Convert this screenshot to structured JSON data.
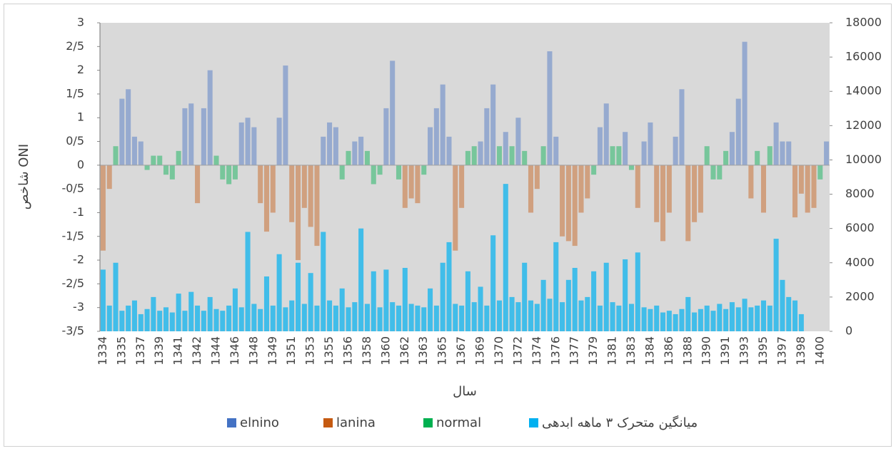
{
  "chart_data": {
    "type": "bar",
    "x_label": "سال",
    "y_label": "شاخص ONI",
    "categories": [
      "1334",
      null,
      null,
      "1335",
      null,
      null,
      "1337",
      null,
      null,
      "1339",
      null,
      null,
      "1341",
      null,
      null,
      "1342",
      null,
      null,
      "1344",
      null,
      null,
      "1346",
      null,
      null,
      "1348",
      null,
      null,
      "1349",
      null,
      null,
      "1351",
      null,
      null,
      "1353",
      null,
      null,
      "1355",
      null,
      null,
      "1356",
      null,
      null,
      "1358",
      null,
      null,
      "1360",
      null,
      null,
      "1362",
      null,
      null,
      "1363",
      null,
      null,
      "1365",
      null,
      null,
      "1367",
      null,
      null,
      "1369",
      null,
      null,
      "1370",
      null,
      null,
      "1372",
      null,
      null,
      "1374",
      null,
      null,
      "1376",
      null,
      null,
      "1377",
      null,
      null,
      "1379",
      null,
      null,
      "1381",
      null,
      null,
      "1383",
      null,
      null,
      "1384",
      null,
      null,
      "1386",
      null,
      null,
      "1388",
      null,
      null,
      "1390",
      null,
      null,
      "1391",
      null,
      null,
      "1393",
      null,
      null,
      "1395",
      null,
      null,
      "1397",
      null,
      null,
      "1398",
      null,
      null,
      "1400",
      null
    ],
    "series": [
      {
        "name": "elnino",
        "color": "#4472c4",
        "values": [
          null,
          null,
          null,
          1.4,
          1.6,
          0.6,
          0.5,
          null,
          null,
          null,
          null,
          null,
          null,
          1.2,
          1.3,
          null,
          1.2,
          2.0,
          null,
          null,
          null,
          null,
          0.9,
          1.0,
          0.8,
          null,
          null,
          null,
          1.0,
          2.1,
          null,
          null,
          null,
          null,
          null,
          0.6,
          0.9,
          0.8,
          null,
          null,
          0.5,
          0.6,
          null,
          null,
          null,
          1.2,
          2.2,
          null,
          null,
          null,
          null,
          null,
          0.8,
          1.2,
          1.7,
          0.6,
          null,
          null,
          null,
          null,
          0.5,
          1.2,
          1.7,
          null,
          0.7,
          null,
          1.0,
          null,
          null,
          null,
          null,
          2.4,
          0.6,
          null,
          null,
          null,
          null,
          null,
          null,
          0.8,
          1.3,
          null,
          null,
          0.7,
          null,
          null,
          0.5,
          0.9,
          null,
          null,
          null,
          0.6,
          1.6,
          null,
          null,
          null,
          null,
          null,
          null,
          null,
          0.7,
          1.4,
          2.6,
          null,
          null,
          null,
          null,
          0.9,
          0.5,
          0.5,
          null,
          null,
          null,
          null,
          null,
          0.5
        ]
      },
      {
        "name": "lanina",
        "color": "#c55a11",
        "values": [
          -1.8,
          -0.5,
          null,
          null,
          null,
          null,
          null,
          null,
          null,
          null,
          null,
          null,
          null,
          null,
          null,
          -0.8,
          null,
          null,
          null,
          null,
          null,
          null,
          null,
          null,
          null,
          -0.8,
          -1.4,
          -1.0,
          null,
          null,
          -1.2,
          -2.0,
          -0.9,
          -1.3,
          -1.7,
          null,
          null,
          null,
          null,
          null,
          null,
          null,
          null,
          null,
          null,
          null,
          null,
          null,
          -0.9,
          -0.7,
          -0.8,
          null,
          null,
          null,
          null,
          null,
          -1.8,
          -0.9,
          null,
          null,
          null,
          null,
          null,
          null,
          null,
          null,
          null,
          null,
          -1.0,
          -0.5,
          null,
          null,
          null,
          -1.5,
          -1.6,
          -1.7,
          -1.0,
          -0.7,
          null,
          null,
          null,
          null,
          null,
          null,
          null,
          -0.9,
          null,
          null,
          -1.2,
          -1.6,
          -1.0,
          null,
          null,
          -1.6,
          -1.2,
          -1.0,
          null,
          null,
          null,
          null,
          null,
          null,
          null,
          -0.7,
          null,
          -1.0,
          null,
          null,
          null,
          null,
          -1.1,
          -0.6,
          -1.0,
          -0.9,
          null,
          null
        ]
      },
      {
        "name": "normal",
        "color": "#00b050",
        "values": [
          null,
          null,
          0.4,
          null,
          null,
          null,
          null,
          -0.1,
          0.2,
          0.2,
          -0.2,
          -0.3,
          0.3,
          null,
          null,
          null,
          null,
          null,
          0.2,
          -0.3,
          -0.4,
          -0.3,
          null,
          null,
          null,
          null,
          null,
          null,
          null,
          null,
          null,
          null,
          null,
          null,
          null,
          null,
          null,
          null,
          -0.3,
          0.3,
          null,
          null,
          0.3,
          -0.4,
          -0.2,
          null,
          null,
          -0.3,
          null,
          null,
          null,
          -0.2,
          null,
          null,
          null,
          null,
          null,
          null,
          0.3,
          0.4,
          null,
          null,
          null,
          0.4,
          null,
          0.4,
          null,
          0.3,
          null,
          null,
          0.4,
          null,
          null,
          null,
          null,
          null,
          null,
          null,
          -0.2,
          null,
          null,
          0.4,
          0.4,
          null,
          -0.1,
          null,
          null,
          null,
          null,
          null,
          null,
          null,
          null,
          null,
          null,
          null,
          0.4,
          -0.3,
          -0.3,
          0.3,
          null,
          null,
          null,
          null,
          0.3,
          null,
          0.4,
          null,
          null,
          null,
          null,
          null,
          null,
          null,
          -0.3,
          null
        ]
      },
      {
        "name": "میانگین متحرک ۳ ماهه ابدهی",
        "color": "#00b0f0",
        "axis": "y2",
        "values": [
          3600,
          1500,
          4000,
          1200,
          1500,
          1800,
          1000,
          1300,
          2000,
          1200,
          1400,
          1100,
          2200,
          1200,
          2300,
          1500,
          1200,
          2000,
          1300,
          1200,
          1500,
          2500,
          1400,
          5800,
          1600,
          1300,
          3200,
          1500,
          4500,
          1400,
          1800,
          4000,
          1600,
          3400,
          1500,
          5800,
          1800,
          1500,
          2500,
          1400,
          1700,
          6000,
          1600,
          3500,
          1400,
          3600,
          1700,
          1500,
          3700,
          1600,
          1500,
          1400,
          2500,
          1500,
          4000,
          5200,
          1600,
          1500,
          3500,
          1700,
          2600,
          1500,
          5600,
          1800,
          8600,
          2000,
          1700,
          4000,
          1800,
          1600,
          3000,
          1900,
          5200,
          1700,
          3000,
          3700,
          1800,
          2000,
          3500,
          1500,
          4000,
          1700,
          1500,
          4200,
          1600,
          4600,
          1400,
          1300,
          1500,
          1100,
          1200,
          1000,
          1300,
          2000,
          1100,
          1300,
          1500,
          1200,
          1600,
          1300,
          1700,
          1400,
          1900,
          1400,
          1500,
          1800,
          1500,
          5400,
          3000,
          2000,
          1800,
          1000,
          null,
          null,
          null,
          null
        ]
      }
    ],
    "ylim": [
      -3.5,
      3
    ],
    "yticks": [
      {
        "value": -3.5,
        "label": "-3/5"
      },
      -3,
      {
        "value": -2.5,
        "label": "-2/5"
      },
      -2,
      {
        "value": -1.5,
        "label": "-1/5"
      },
      -1,
      {
        "value": -0.5,
        "label": "-0/5"
      },
      0,
      {
        "value": 0.5,
        "label": "0/5"
      },
      1,
      {
        "value": 1.5,
        "label": "1/5"
      },
      2,
      {
        "value": 2.5,
        "label": "2/5"
      },
      3
    ],
    "y2lim": [
      0,
      18000
    ],
    "y2ticks": [
      0,
      2000,
      4000,
      6000,
      8000,
      10000,
      12000,
      14000,
      16000,
      18000
    ],
    "grid": false,
    "legend": "bottom"
  }
}
